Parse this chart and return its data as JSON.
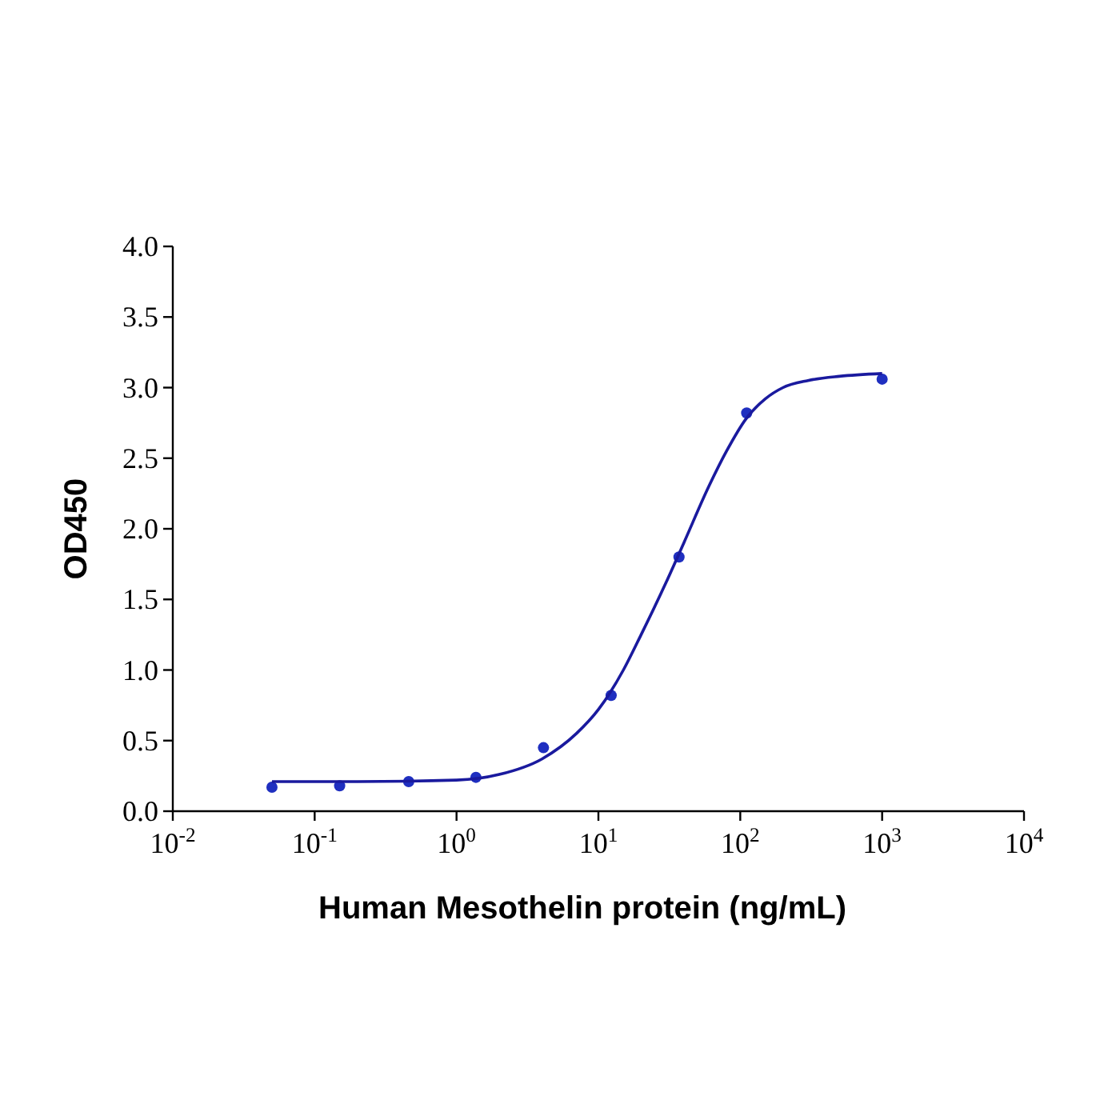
{
  "chart_data": {
    "type": "scatter",
    "xlabel": "Human Mesothelin protein (ng/mL)",
    "ylabel": "OD450",
    "log": "x",
    "xlim": [
      0.01,
      10000
    ],
    "xticks": [
      {
        "value": 0.01,
        "label": "10$^{-2}$"
      },
      {
        "value": 0.1,
        "label": "10$^{-1}$"
      },
      {
        "value": 1,
        "label": "10$^{0}$"
      },
      {
        "value": 10,
        "label": "10$^{1}$"
      },
      {
        "value": 100,
        "label": "10$^{2}$"
      },
      {
        "value": 1000,
        "label": "10$^{3}$"
      },
      {
        "value": 10000,
        "label": "10$^{4}$"
      }
    ],
    "ylim": [
      0,
      4
    ],
    "yticks": [
      {
        "value": 0,
        "label": "0.0"
      },
      {
        "value": 0.5,
        "label": "0.5"
      },
      {
        "value": 1,
        "label": "1.0"
      },
      {
        "value": 1.5,
        "label": "1.5"
      },
      {
        "value": 2,
        "label": "2.0"
      },
      {
        "value": 2.5,
        "label": "2.5"
      },
      {
        "value": 3,
        "label": "3.0"
      },
      {
        "value": 3.5,
        "label": "3.5"
      },
      {
        "value": 4,
        "label": "4.0"
      }
    ],
    "grid": false,
    "marker": "circle",
    "series": [
      {
        "color": "#1f2fc0",
        "x": [
          0.05,
          0.15,
          0.46,
          1.37,
          4.1,
          12.3,
          37,
          111,
          1000
        ],
        "values": [
          0.17,
          0.18,
          0.21,
          0.24,
          0.45,
          0.82,
          1.8,
          2.82,
          3.06
        ]
      },
      {
        "type": "line",
        "color": "#1a1a9e",
        "line_style": "solid",
        "marker": "none",
        "x": [
          0.05,
          0.2,
          1,
          2,
          4,
          7,
          10,
          15,
          20,
          30,
          40,
          60,
          80,
          110,
          150,
          200,
          300,
          500,
          1000
        ],
        "values": [
          0.21,
          0.21,
          0.22,
          0.26,
          0.37,
          0.55,
          0.72,
          1.0,
          1.25,
          1.62,
          1.9,
          2.3,
          2.55,
          2.78,
          2.92,
          3.0,
          3.05,
          3.08,
          3.1
        ]
      }
    ]
  }
}
